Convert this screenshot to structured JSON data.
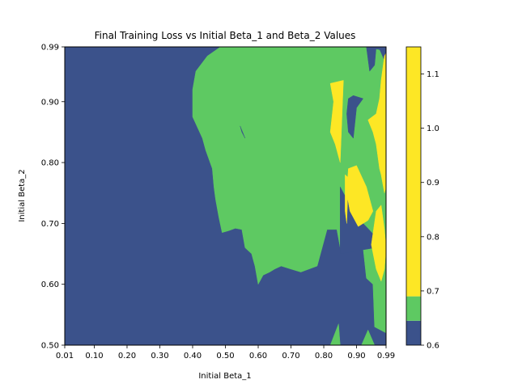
{
  "chart_data": {
    "type": "heatmap",
    "subtype": "filled-contour",
    "title": "Final Training Loss vs Initial Beta_1 and Beta_2 Values",
    "xlabel": "Initial Beta_1",
    "ylabel": "Initial Beta_2",
    "xlim": [
      0.01,
      0.99
    ],
    "ylim": [
      0.5,
      0.99
    ],
    "x_ticks": [
      "0.01",
      "0.10",
      "0.20",
      "0.30",
      "0.40",
      "0.50",
      "0.60",
      "0.70",
      "0.80",
      "0.90",
      "0.99"
    ],
    "x_tick_values": [
      0.01,
      0.1,
      0.2,
      0.3,
      0.4,
      0.5,
      0.6,
      0.7,
      0.8,
      0.9,
      0.99
    ],
    "y_ticks": [
      "0.50",
      "0.60",
      "0.70",
      "0.80",
      "0.90",
      "0.99"
    ],
    "y_tick_values": [
      0.5,
      0.6,
      0.7,
      0.8,
      0.9,
      0.99
    ],
    "colorbar": {
      "range": [
        0.6,
        1.15
      ],
      "ticks": [
        "0.6",
        "0.7",
        "0.8",
        "0.9",
        "1.0",
        "1.1"
      ],
      "tick_values": [
        0.6,
        0.7,
        0.8,
        0.9,
        1.0,
        1.1
      ],
      "levels": [
        0.6,
        0.645,
        0.69,
        1.15
      ],
      "colors": [
        "#3b528b",
        "#5ec962",
        "#fde725"
      ]
    },
    "regions": [
      {
        "level": "low",
        "color": "#3b528b",
        "polygons": [
          [
            [
              0.01,
              0.5
            ],
            [
              0.99,
              0.5
            ],
            [
              0.99,
              0.99
            ],
            [
              0.01,
              0.99
            ]
          ]
        ]
      },
      {
        "level": "mid",
        "color": "#5ec962",
        "polygons": [
          [
            [
              0.485,
              0.99
            ],
            [
              0.55,
              0.99
            ],
            [
              0.58,
              0.992
            ],
            [
              0.6,
              0.99
            ],
            [
              0.92,
              0.99
            ],
            [
              0.97,
              0.985
            ],
            [
              0.99,
              0.96
            ],
            [
              0.99,
              0.52
            ],
            [
              0.955,
              0.53
            ],
            [
              0.95,
              0.6
            ],
            [
              0.93,
              0.61
            ],
            [
              0.92,
              0.66
            ],
            [
              0.85,
              0.66
            ],
            [
              0.84,
              0.69
            ],
            [
              0.81,
              0.69
            ],
            [
              0.78,
              0.63
            ],
            [
              0.73,
              0.62
            ],
            [
              0.7,
              0.625
            ],
            [
              0.67,
              0.63
            ],
            [
              0.65,
              0.625
            ],
            [
              0.635,
              0.62
            ],
            [
              0.615,
              0.615
            ],
            [
              0.6,
              0.6
            ],
            [
              0.59,
              0.63
            ],
            [
              0.585,
              0.64
            ],
            [
              0.58,
              0.65
            ],
            [
              0.56,
              0.66
            ],
            [
              0.55,
              0.69
            ],
            [
              0.53,
              0.692
            ],
            [
              0.51,
              0.688
            ],
            [
              0.49,
              0.685
            ],
            [
              0.48,
              0.71
            ],
            [
              0.47,
              0.74
            ],
            [
              0.465,
              0.76
            ],
            [
              0.46,
              0.79
            ],
            [
              0.44,
              0.82
            ],
            [
              0.43,
              0.84
            ],
            [
              0.4,
              0.875
            ],
            [
              0.4,
              0.92
            ],
            [
              0.41,
              0.95
            ],
            [
              0.445,
              0.975
            ]
          ],
          [
            [
              0.82,
              0.5
            ],
            [
              0.85,
              0.5
            ],
            [
              0.845,
              0.535
            ]
          ],
          [
            [
              0.915,
              0.5
            ],
            [
              0.955,
              0.5
            ],
            [
              0.935,
              0.525
            ]
          ]
        ]
      },
      {
        "level": "low",
        "color": "#3b528b",
        "polygons": [
          [
            [
              0.85,
              0.65
            ],
            [
              0.955,
              0.66
            ],
            [
              0.955,
              0.68
            ],
            [
              0.92,
              0.7
            ],
            [
              0.87,
              0.74
            ],
            [
              0.86,
              0.75
            ],
            [
              0.85,
              0.76
            ]
          ],
          [
            [
              0.545,
              0.86
            ],
            [
              0.56,
              0.84
            ],
            [
              0.55,
              0.85
            ]
          ],
          [
            [
              0.875,
              0.905
            ],
            [
              0.89,
              0.91
            ],
            [
              0.92,
              0.905
            ],
            [
              0.9,
              0.89
            ],
            [
              0.89,
              0.84
            ],
            [
              0.875,
              0.85
            ],
            [
              0.87,
              0.88
            ]
          ],
          [
            [
              0.93,
              0.99
            ],
            [
              0.96,
              0.99
            ],
            [
              0.955,
              0.96
            ],
            [
              0.94,
              0.95
            ]
          ]
        ]
      },
      {
        "level": "high",
        "color": "#fde725",
        "polygons": [
          [
            [
              0.82,
              0.93
            ],
            [
              0.86,
              0.935
            ],
            [
              0.85,
              0.8
            ],
            [
              0.835,
              0.83
            ],
            [
              0.82,
              0.85
            ],
            [
              0.83,
              0.9
            ]
          ],
          [
            [
              0.875,
              0.79
            ],
            [
              0.9,
              0.795
            ],
            [
              0.93,
              0.76
            ],
            [
              0.95,
              0.72
            ],
            [
              0.935,
              0.705
            ],
            [
              0.905,
              0.695
            ],
            [
              0.88,
              0.72
            ],
            [
              0.87,
              0.75
            ]
          ],
          [
            [
              0.865,
              0.78
            ],
            [
              0.875,
              0.775
            ],
            [
              0.87,
              0.7
            ],
            [
              0.865,
              0.72
            ]
          ],
          [
            [
              0.935,
              0.87
            ],
            [
              0.96,
              0.88
            ],
            [
              0.97,
              0.905
            ],
            [
              0.975,
              0.935
            ],
            [
              0.985,
              0.975
            ],
            [
              0.99,
              0.98
            ],
            [
              0.99,
              0.76
            ],
            [
              0.985,
              0.75
            ],
            [
              0.975,
              0.78
            ],
            [
              0.97,
              0.79
            ],
            [
              0.96,
              0.83
            ],
            [
              0.95,
              0.85
            ]
          ],
          [
            [
              0.945,
              0.665
            ],
            [
              0.96,
              0.625
            ],
            [
              0.975,
              0.605
            ],
            [
              0.985,
              0.625
            ],
            [
              0.99,
              0.66
            ],
            [
              0.985,
              0.69
            ],
            [
              0.975,
              0.73
            ],
            [
              0.96,
              0.72
            ]
          ]
        ]
      }
    ]
  }
}
